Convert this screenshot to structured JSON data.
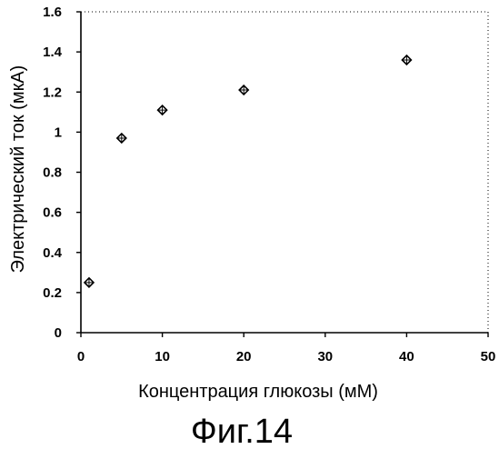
{
  "chart_data": {
    "type": "scatter",
    "title": "",
    "xlabel": "Концентрация глюкозы (мМ)",
    "ylabel": "Электрический ток (мкА)",
    "xlim": [
      0,
      50
    ],
    "ylim": [
      0,
      1.6
    ],
    "x_ticks": [
      "0",
      "10",
      "20",
      "30",
      "40",
      "50"
    ],
    "y_ticks": [
      "0",
      "0.2",
      "0.4",
      "0.6",
      "0.8",
      "1",
      "1.2",
      "1.4",
      "1.6"
    ],
    "grid": false,
    "marker": "diamond",
    "series": [
      {
        "x": [
          1,
          5,
          10,
          20,
          40
        ],
        "y": [
          0.25,
          0.97,
          1.11,
          1.21,
          1.36
        ]
      }
    ]
  },
  "caption": "Фиг.14",
  "colors": {
    "marker": "#000000",
    "axis": "#000000",
    "background": "#ffffff"
  }
}
